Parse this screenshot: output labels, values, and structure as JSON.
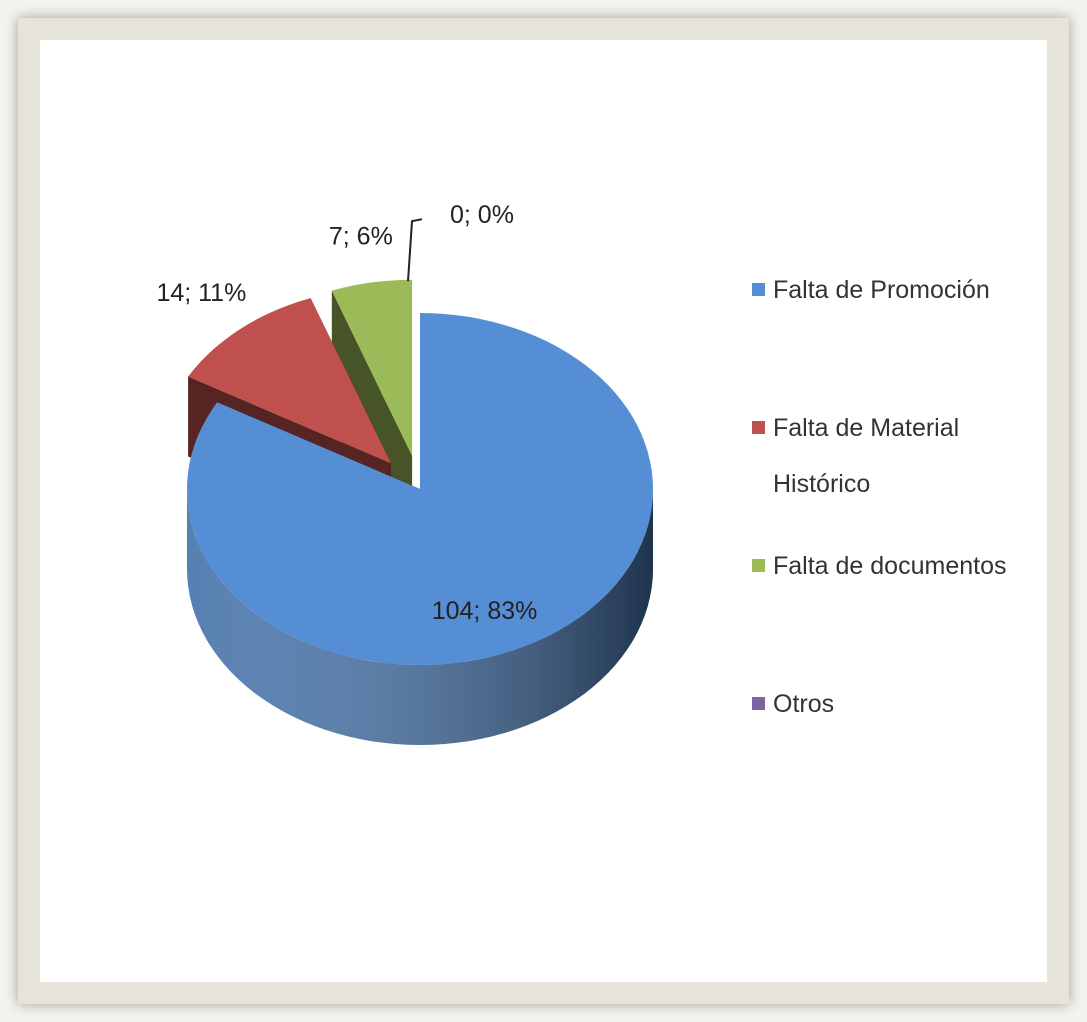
{
  "chart_data": {
    "type": "pie",
    "categories": [
      "Falta de Promoción",
      "Falta de Material Histórico",
      "Falta de documentos",
      "Otros"
    ],
    "values": [
      104,
      14,
      7,
      0
    ],
    "value_labels": [
      "104; 83%",
      "14; 11%",
      "7; 6%",
      "0; 0%"
    ],
    "colors": [
      "#558ed5",
      "#c0504d",
      "#9bbb59",
      "#8064a2"
    ],
    "legend": "right"
  }
}
